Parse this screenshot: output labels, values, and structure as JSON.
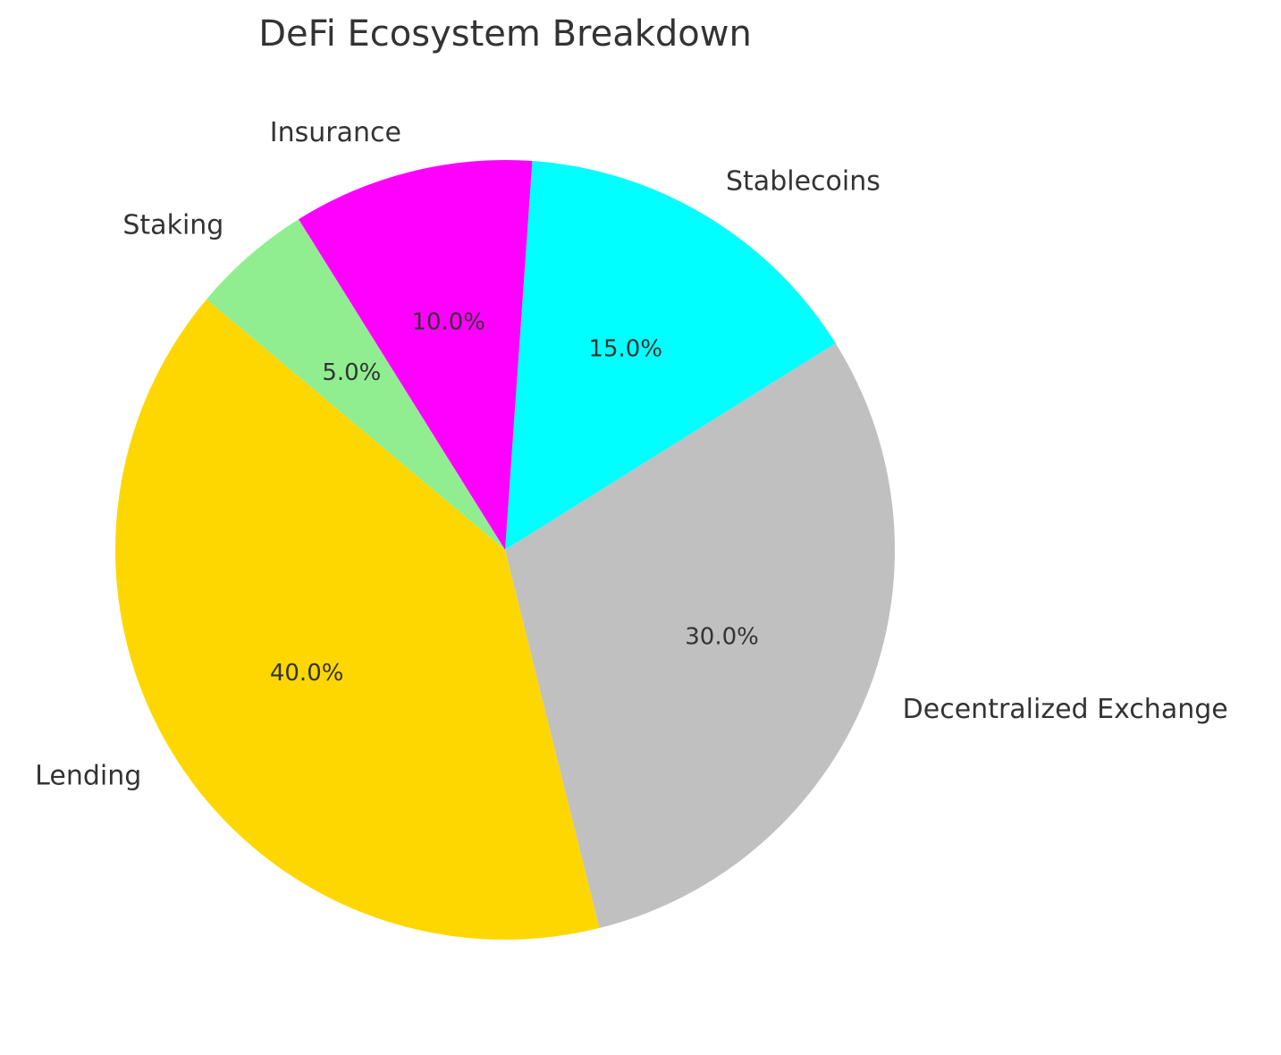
{
  "chart_data": {
    "type": "pie",
    "title": "DeFi Ecosystem Breakdown",
    "categories": [
      "Lending",
      "Decentralized Exchange",
      "Stablecoins",
      "Insurance",
      "Staking"
    ],
    "values": [
      40,
      30,
      15,
      10,
      5
    ],
    "value_labels": [
      "40.0%",
      "30.0%",
      "15.0%",
      "10.0%",
      "5.0%"
    ],
    "colors": [
      "#ffd700",
      "#c0c0c0",
      "#00ffff",
      "#ff00ff",
      "#90ee90"
    ]
  }
}
